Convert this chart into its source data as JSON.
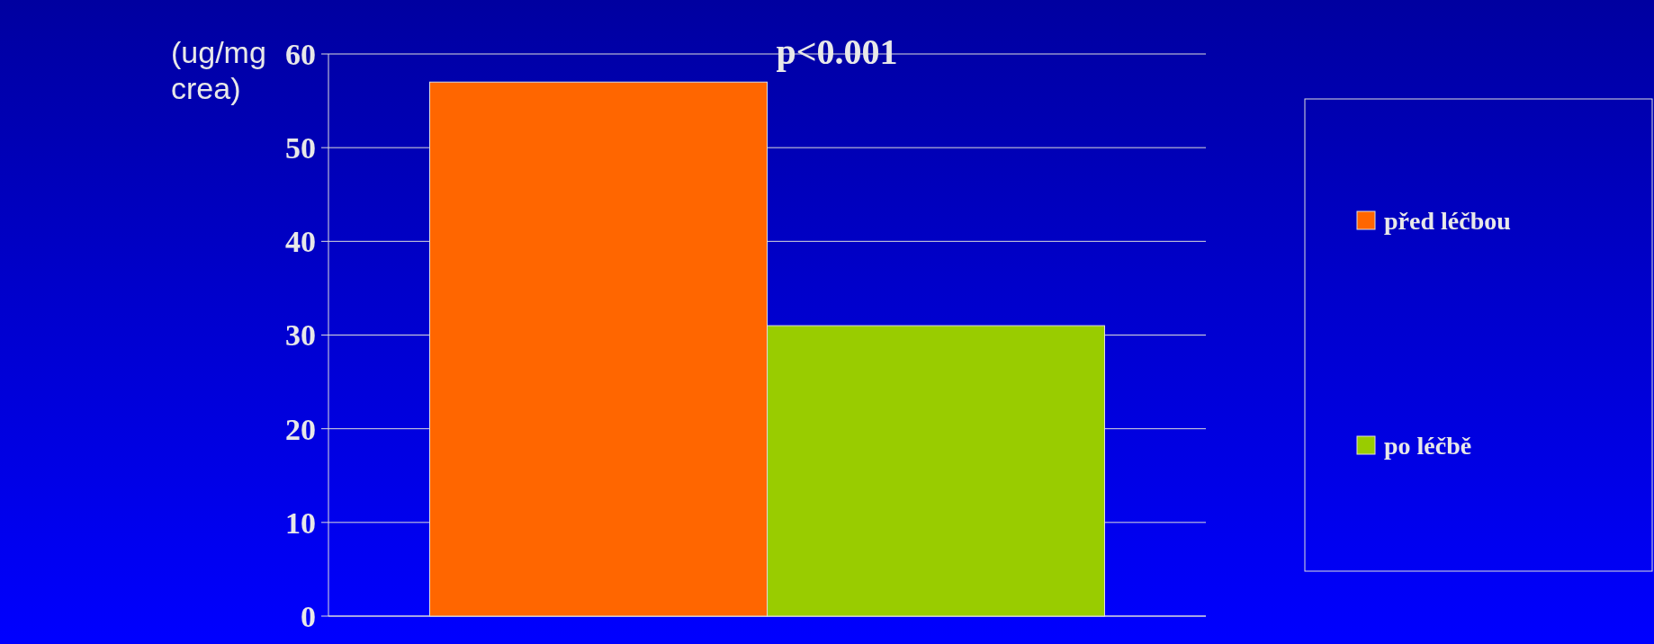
{
  "chart_data": {
    "type": "bar",
    "ylabel": "(ug/mg crea)",
    "categories": [
      null
    ],
    "series": [
      {
        "name": "před léčbou",
        "color": "#ff6600",
        "values": [
          57
        ]
      },
      {
        "name": "po léčbě",
        "color": "#99cc00",
        "values": [
          31
        ]
      }
    ],
    "ylim": [
      0,
      60
    ],
    "yticks": [
      0,
      10,
      20,
      30,
      40,
      50,
      60
    ],
    "grid": "y",
    "legend": "right",
    "annotations": [
      "p<0.001"
    ]
  }
}
